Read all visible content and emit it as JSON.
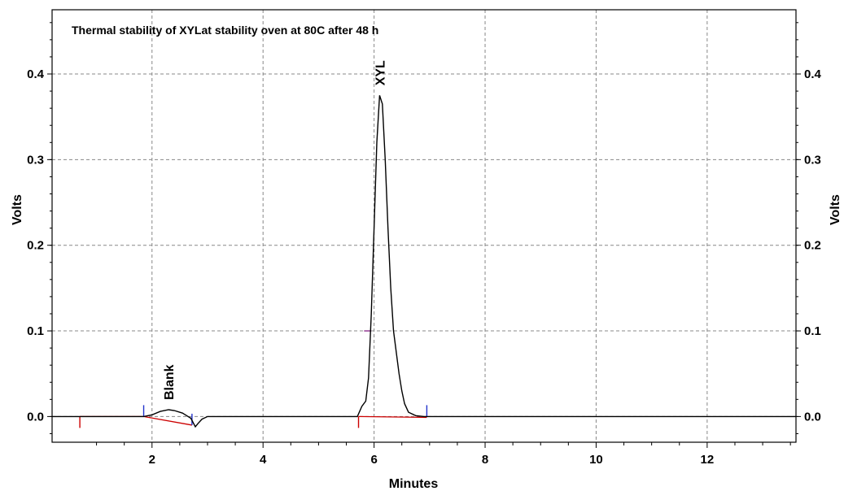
{
  "chart_data": {
    "type": "line",
    "title": "Thermal stability of XYLat stability oven at 80C after 48 h",
    "xlabel": "Minutes",
    "ylabel_left": "Volts",
    "ylabel_right": "Volts",
    "xlim": [
      0.2,
      13.6
    ],
    "ylim": [
      -0.03,
      0.475
    ],
    "x_ticks": [
      2,
      4,
      6,
      8,
      10,
      12
    ],
    "x_tick_labels": [
      "2",
      "4",
      "6",
      "8",
      "10",
      "12"
    ],
    "y_ticks": [
      0.0,
      0.1,
      0.2,
      0.3,
      0.4
    ],
    "y_tick_labels": [
      "0.0",
      "0.1",
      "0.2",
      "0.3",
      "0.4"
    ],
    "grid": true,
    "colors": {
      "trace": "#000000",
      "baseline": "#cc0000",
      "peak_marker": "#2233cc",
      "grid": "#888888"
    },
    "series": [
      {
        "points": [
          [
            0.2,
            0.0
          ],
          [
            1.85,
            0.0
          ],
          [
            2.0,
            0.002
          ],
          [
            2.15,
            0.006
          ],
          [
            2.3,
            0.008
          ],
          [
            2.4,
            0.007
          ],
          [
            2.55,
            0.004
          ],
          [
            2.7,
            -0.002
          ],
          [
            2.78,
            -0.012
          ],
          [
            2.83,
            -0.008
          ],
          [
            2.9,
            -0.003
          ],
          [
            3.0,
            0.0
          ],
          [
            5.7,
            0.0
          ],
          [
            5.78,
            0.012
          ],
          [
            5.85,
            0.018
          ],
          [
            5.9,
            0.045
          ],
          [
            5.95,
            0.12
          ],
          [
            6.0,
            0.22
          ],
          [
            6.05,
            0.32
          ],
          [
            6.1,
            0.375
          ],
          [
            6.15,
            0.365
          ],
          [
            6.2,
            0.3
          ],
          [
            6.25,
            0.22
          ],
          [
            6.3,
            0.15
          ],
          [
            6.35,
            0.1
          ],
          [
            6.4,
            0.075
          ],
          [
            6.45,
            0.05
          ],
          [
            6.5,
            0.03
          ],
          [
            6.55,
            0.015
          ],
          [
            6.62,
            0.005
          ],
          [
            6.75,
            0.001
          ],
          [
            6.9,
            0.0
          ],
          [
            13.6,
            0.0
          ]
        ]
      }
    ],
    "baselines": [
      {
        "from": [
          0.7,
          0.0
        ],
        "to": [
          1.85,
          0.0
        ]
      },
      {
        "from": [
          1.85,
          0.0
        ],
        "to": [
          2.72,
          -0.01
        ]
      },
      {
        "from": [
          5.72,
          0.0
        ],
        "to": [
          6.95,
          -0.001
        ]
      }
    ],
    "event_marks": [
      {
        "x": 0.7,
        "y": 0.0,
        "color": "red",
        "direction": "down"
      },
      {
        "x": 1.85,
        "y": 0.0,
        "color": "blue",
        "direction": "up"
      },
      {
        "x": 2.72,
        "y": -0.01,
        "color": "blue",
        "direction": "up"
      },
      {
        "x": 5.72,
        "y": 0.0,
        "color": "red",
        "direction": "down"
      },
      {
        "x": 6.95,
        "y": 0.0,
        "color": "blue",
        "direction": "up"
      }
    ],
    "peak_labels": [
      {
        "text": "Blank",
        "x": 2.3,
        "y": 0.008
      },
      {
        "text": "XYL",
        "x": 6.1,
        "y": 0.375
      }
    ]
  }
}
